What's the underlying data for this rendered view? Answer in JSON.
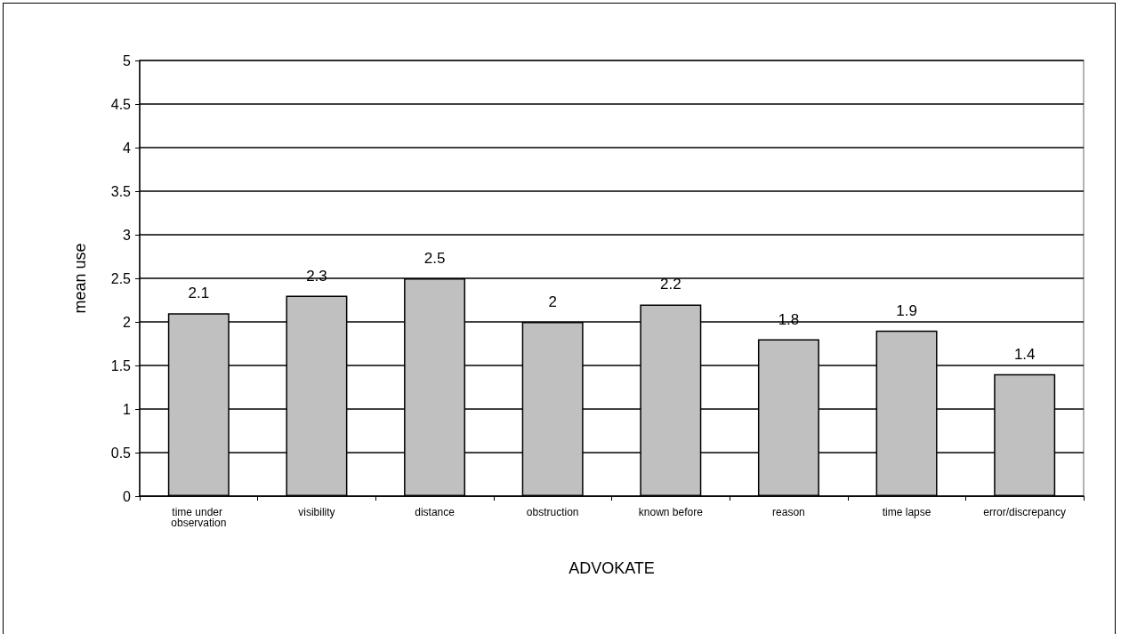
{
  "chart_data": {
    "type": "bar",
    "xlabel": "ADVOKATE",
    "ylabel": "mean use",
    "categories": [
      "time under observation",
      "visibility",
      "distance",
      "obstruction",
      "known before",
      "reason",
      "time lapse",
      "error/discrepancy"
    ],
    "values": [
      2.1,
      2.3,
      2.5,
      2,
      2.2,
      1.8,
      1.9,
      1.4
    ],
    "color": "#c0c0c0",
    "ylim": [
      0,
      5
    ],
    "yticks": [
      0,
      0.5,
      1,
      1.5,
      2,
      2.5,
      3,
      3.5,
      4,
      4.5,
      5
    ],
    "grid": "y",
    "data_labels": true
  }
}
